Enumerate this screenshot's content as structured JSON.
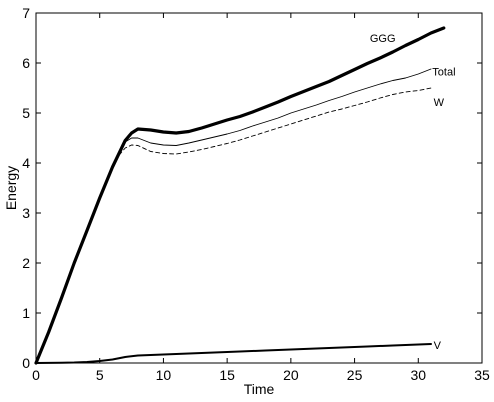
{
  "chart_data": {
    "type": "line",
    "xlabel": "Time",
    "ylabel": "Energy",
    "xlim": [
      0,
      35
    ],
    "ylim": [
      0,
      7
    ],
    "xticks": [
      0,
      5,
      10,
      15,
      20,
      25,
      30,
      35
    ],
    "yticks": [
      0,
      1,
      2,
      3,
      4,
      5,
      6,
      7
    ],
    "grid": false,
    "legend": "none",
    "series": [
      {
        "name": "GGG",
        "style": "thick-solid",
        "x": [
          0,
          1,
          2,
          3,
          4,
          5,
          6,
          7,
          7.5,
          8,
          9,
          10,
          11,
          12,
          13,
          14,
          15,
          16,
          17,
          18,
          19,
          20,
          21,
          22,
          23,
          24,
          25,
          26,
          27,
          28,
          29,
          30,
          31,
          32
        ],
        "y": [
          0,
          0.62,
          1.3,
          2.0,
          2.65,
          3.3,
          3.92,
          4.45,
          4.6,
          4.68,
          4.66,
          4.62,
          4.6,
          4.63,
          4.7,
          4.78,
          4.86,
          4.93,
          5.02,
          5.12,
          5.22,
          5.33,
          5.43,
          5.53,
          5.63,
          5.75,
          5.87,
          5.99,
          6.1,
          6.22,
          6.35,
          6.47,
          6.6,
          6.7
        ]
      },
      {
        "name": "Total",
        "style": "thin-solid",
        "x": [
          0,
          1,
          2,
          3,
          4,
          5,
          6,
          6.5,
          7,
          7.5,
          8,
          9,
          10,
          11,
          12,
          13,
          14,
          15,
          16,
          17,
          18,
          19,
          20,
          21,
          22,
          23,
          24,
          25,
          26,
          27,
          28,
          29,
          30,
          31
        ],
        "y": [
          0,
          0.62,
          1.3,
          2.0,
          2.65,
          3.3,
          3.92,
          4.2,
          4.42,
          4.5,
          4.5,
          4.4,
          4.36,
          4.35,
          4.4,
          4.46,
          4.52,
          4.58,
          4.65,
          4.74,
          4.82,
          4.9,
          5.0,
          5.08,
          5.16,
          5.25,
          5.33,
          5.42,
          5.5,
          5.58,
          5.65,
          5.7,
          5.78,
          5.88
        ]
      },
      {
        "name": "W",
        "style": "dashed",
        "x": [
          0,
          1,
          2,
          3,
          4,
          5,
          6,
          6.5,
          7,
          7.5,
          8,
          9,
          10,
          11,
          12,
          13,
          14,
          15,
          16,
          17,
          18,
          19,
          20,
          21,
          22,
          23,
          24,
          25,
          26,
          27,
          28,
          29,
          30,
          31
        ],
        "y": [
          0,
          0.62,
          1.3,
          2.0,
          2.65,
          3.3,
          3.92,
          4.15,
          4.3,
          4.36,
          4.35,
          4.23,
          4.19,
          4.18,
          4.22,
          4.27,
          4.33,
          4.39,
          4.46,
          4.54,
          4.62,
          4.7,
          4.78,
          4.86,
          4.94,
          5.02,
          5.08,
          5.15,
          5.22,
          5.3,
          5.37,
          5.42,
          5.45,
          5.5
        ]
      },
      {
        "name": "V",
        "style": "medium-solid",
        "x": [
          0,
          1,
          2,
          3,
          4,
          5,
          6,
          7,
          8,
          9,
          10,
          12,
          14,
          16,
          18,
          20,
          22,
          24,
          26,
          28,
          30,
          31
        ],
        "y": [
          0,
          0.003,
          0.006,
          0.01,
          0.02,
          0.04,
          0.07,
          0.12,
          0.15,
          0.16,
          0.17,
          0.19,
          0.21,
          0.23,
          0.25,
          0.27,
          0.29,
          0.31,
          0.33,
          0.35,
          0.37,
          0.38
        ]
      }
    ],
    "labels": [
      {
        "text": "GGG",
        "x": 26.2,
        "y": 6.5
      },
      {
        "text": "Total",
        "x": 31.1,
        "y": 5.83
      },
      {
        "text": "W",
        "x": 31.2,
        "y": 5.22
      },
      {
        "text": "V",
        "x": 31.2,
        "y": 0.36
      }
    ]
  }
}
